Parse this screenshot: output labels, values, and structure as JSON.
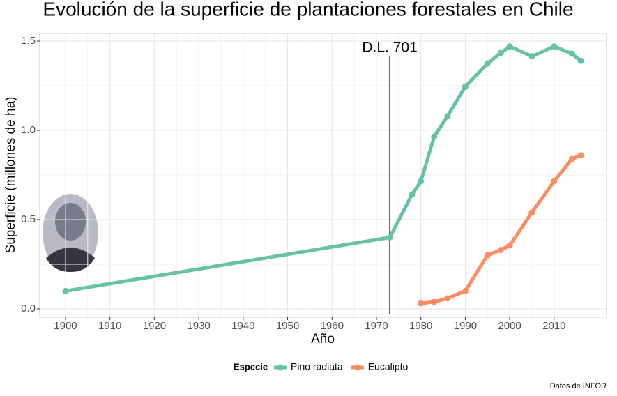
{
  "chart_data": {
    "type": "line",
    "title": "Evolución de la superficie de plantaciones forestales en Chile",
    "x_label": "Año",
    "y_label": "Superficie (millones de ha)",
    "legend_title": "Especie",
    "legend_position": "bottom",
    "caption": "Datos de INFOR",
    "annotation": {
      "text": "D.L. 701",
      "x": 1973
    },
    "xlim": [
      1894.2,
      2021.8
    ],
    "xticks": [
      1900,
      1910,
      1920,
      1930,
      1940,
      1950,
      1960,
      1970,
      1980,
      1990,
      2000,
      2010
    ],
    "ylim": [
      -0.047,
      1.543
    ],
    "yticks": [
      {
        "value": 0,
        "label": "0.0"
      },
      0.5,
      {
        "value": 1,
        "label": "1.0"
      },
      1.5
    ],
    "grid": true,
    "series": [
      {
        "name": "Pino radiata",
        "color": "#66c2a5",
        "x": [
          1900,
          1973,
          1978,
          1980,
          1983,
          1986,
          1990,
          1995,
          1998,
          2000,
          2005,
          2010,
          2014,
          2016
        ],
        "values": [
          0.1,
          0.4,
          0.64,
          0.715,
          0.965,
          1.08,
          1.245,
          1.375,
          1.435,
          1.47,
          1.415,
          1.47,
          1.43,
          1.39
        ]
      },
      {
        "name": "Eucalipto",
        "color": "#fc8d62",
        "x": [
          1980,
          1983,
          1986,
          1990,
          1995,
          1998,
          2000,
          2005,
          2010,
          2014,
          2016
        ],
        "values": [
          0.031,
          0.039,
          0.059,
          0.1,
          0.3,
          0.33,
          0.355,
          0.54,
          0.715,
          0.84,
          0.86
        ]
      }
    ]
  }
}
